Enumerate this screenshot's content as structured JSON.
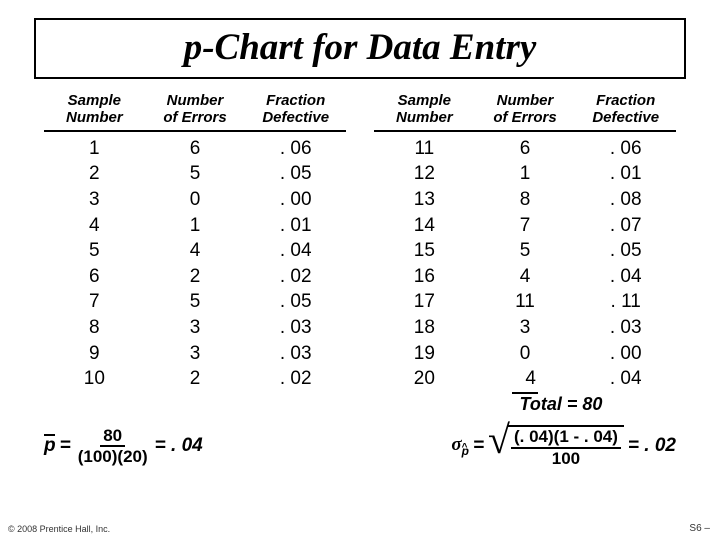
{
  "title": "p-Chart for Data Entry",
  "headers": {
    "sample": "Sample Number",
    "errors": "Number of Errors",
    "fraction": "Fraction Defective"
  },
  "left_table": [
    {
      "s": "1",
      "e": "6",
      "f": ". 06"
    },
    {
      "s": "2",
      "e": "5",
      "f": ". 05"
    },
    {
      "s": "3",
      "e": "0",
      "f": ". 00"
    },
    {
      "s": "4",
      "e": "1",
      "f": ". 01"
    },
    {
      "s": "5",
      "e": "4",
      "f": ". 04"
    },
    {
      "s": "6",
      "e": "2",
      "f": ". 02"
    },
    {
      "s": "7",
      "e": "5",
      "f": ". 05"
    },
    {
      "s": "8",
      "e": "3",
      "f": ". 03"
    },
    {
      "s": "9",
      "e": "3",
      "f": ". 03"
    },
    {
      "s": "10",
      "e": "2",
      "f": ". 02"
    }
  ],
  "right_table": [
    {
      "s": "11",
      "e": "6",
      "f": ". 06"
    },
    {
      "s": "12",
      "e": "1",
      "f": ". 01"
    },
    {
      "s": "13",
      "e": "8",
      "f": ". 08"
    },
    {
      "s": "14",
      "e": "7",
      "f": ". 07"
    },
    {
      "s": "15",
      "e": "5",
      "f": ". 05"
    },
    {
      "s": "16",
      "e": "4",
      "f": ". 04"
    },
    {
      "s": "17",
      "e": "11",
      "f": ". 11"
    },
    {
      "s": "18",
      "e": "3",
      "f": ". 03"
    },
    {
      "s": "19",
      "e": "0",
      "f": ". 00"
    },
    {
      "s": "20",
      "e": "4",
      "f": ". 04"
    }
  ],
  "total_label": "Total =",
  "total_value": "80",
  "formula1": {
    "lhs": "p",
    "eq": "=",
    "num": "80",
    "den": "(100)(20)",
    "result": "= . 04"
  },
  "formula2": {
    "sigma": "σ",
    "sub": "p",
    "eq": "=",
    "num": "(. 04)(1 - . 04)",
    "den": "100",
    "result": "= . 02"
  },
  "copyright": "© 2008 Prentice Hall, Inc.",
  "page": "S6 –"
}
